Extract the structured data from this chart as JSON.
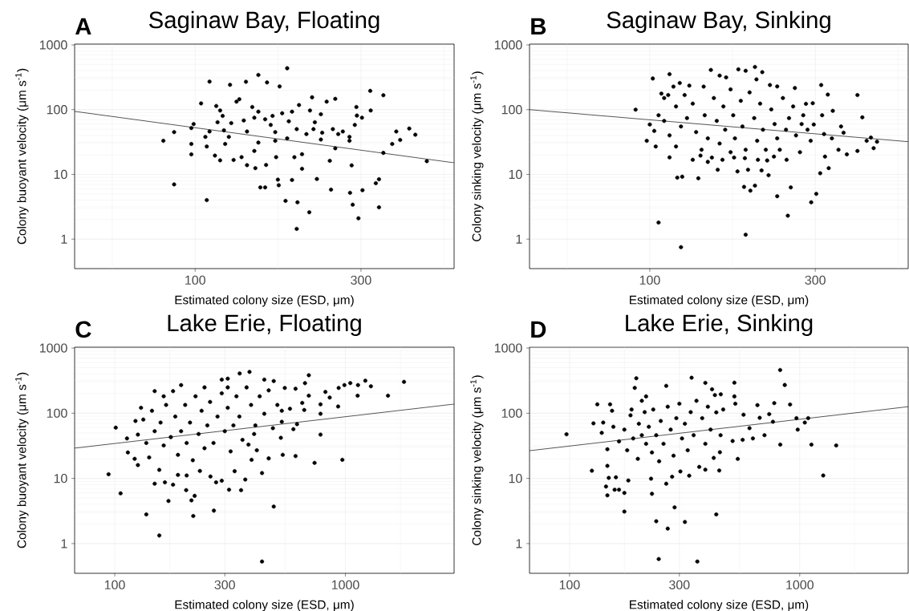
{
  "chart_data": [
    {
      "type": "scatter",
      "title": "Saginaw Bay, Floating",
      "annotations": [
        "A"
      ],
      "xlabel": "Estimated colony size (ESD, μm)",
      "ylabel": "Colony buoyant velocity (μm s$^{-1}$)",
      "log": "xy",
      "grid": true,
      "xlim": [
        45,
        556
      ],
      "ylim": [
        0.35,
        1030
      ],
      "xticks": [
        {
          "value": 57.7,
          "label": null
        },
        100,
        {
          "value": 173.2,
          "label": null
        },
        300,
        {
          "value": 519.6,
          "label": null
        }
      ],
      "yticks": [
        1,
        {
          "value": 3.16,
          "label": null
        },
        10,
        {
          "value": 31.6,
          "label": null
        },
        100,
        {
          "value": 316,
          "label": null
        },
        1000
      ],
      "series": [
        {
          "marker": "circle",
          "color": "#000000",
          "x": [
            81,
            87,
            87,
            97.5,
            97.5,
            97.5,
            99,
            104,
            107,
            108,
            108,
            110,
            110,
            114,
            115,
            116,
            118,
            120,
            121,
            118,
            122,
            126,
            125,
            127,
            131.5,
            134,
            129,
            138,
            140,
            141,
            141,
            136,
            146,
            148,
            149,
            148,
            152,
            152,
            152,
            154,
            159,
            159,
            160,
            161,
            167,
            165,
            175,
            170,
            170,
            171,
            173,
            174,
            178,
            184,
            186,
            184,
            182,
            190,
            190,
            193,
            196,
            197,
            196,
            199,
            203,
            203,
            209,
            217,
            214,
            219,
            221,
            224,
            230,
            230,
            232,
            239,
            244,
            246,
            253,
            249,
            253,
            213,
            258,
            266,
            278,
            278,
            279,
            282,
            284,
            288,
            291,
            292,
            295,
            302,
            303,
            319,
            320,
            331,
            338,
            338,
            348,
            348,
            369,
            379,
            389,
            413,
            430,
            464
          ],
          "values": [
            33,
            45,
            7.0,
            52,
            29.5,
            20.4,
            60,
            125,
            38,
            27,
            4.0,
            271,
            46,
            19.5,
            114,
            64,
            97,
            80,
            48,
            16.5,
            29.5,
            242,
            38,
            62,
            133,
            145,
            16.7,
            68,
            270,
            46,
            13.9,
            18.5,
            110,
            75,
            12.5,
            23,
            344,
            93,
            31,
            6.3,
            6.3,
            71,
            14,
            263,
            80,
            58,
            228,
            45,
            33,
            18.5,
            8.3,
            6.8,
            88,
            436,
            66,
            36,
            3.9,
            93,
            8.2,
            18.4,
            50,
            3.7,
            1.44,
            118,
            12.2,
            20.5,
            42,
            155,
            97,
            50,
            64,
            8.5,
            85,
            34.5,
            44,
            133,
            16.2,
            5.8,
            147,
            50,
            25.3,
            2.6,
            42,
            46,
            38,
            33,
            5.2,
            13.8,
            3.4,
            58,
            110,
            81,
            2.1,
            75,
            5.7,
            195,
            97,
            7.3,
            8.4,
            3.1,
            21.5,
            167,
            29.5,
            46,
            34,
            51,
            41,
            16
          ]
        },
        {
          "type": "line",
          "color": "#000000",
          "x": [
            45,
            556
          ],
          "values": [
            94,
            15.1
          ]
        }
      ]
    },
    {
      "type": "scatter",
      "title": "Saginaw Bay, Sinking",
      "annotations": [
        "B"
      ],
      "xlabel": "Estimated colony size (ESD, μm)",
      "ylabel": "Colony sinking velocity (μm s$^{-1}$)",
      "log": "xy",
      "grid": true,
      "xlim": [
        45,
        556
      ],
      "ylim": [
        0.35,
        1030
      ],
      "xticks": [
        {
          "value": 57.7,
          "label": null
        },
        100,
        {
          "value": 173.2,
          "label": null
        },
        300,
        {
          "value": 519.6,
          "label": null
        }
      ],
      "yticks": [
        1,
        {
          "value": 3.16,
          "label": null
        },
        10,
        {
          "value": 31.6,
          "label": null
        },
        100,
        {
          "value": 316,
          "label": null
        },
        1000
      ],
      "series": [
        {
          "marker": "circle",
          "color": "#000000",
          "x": [
            91,
            98,
            100,
            102,
            106,
            123,
            114,
            120,
            124,
            138,
            114,
            104,
            103,
            106,
            108,
            113,
            122,
            130,
            150,
            159,
            166,
            180,
            189,
            201,
            211,
            203,
            222,
            233,
            262,
            312,
            326,
            397,
            410,
            337,
            295,
            314,
            297,
            318,
            335,
            356,
            362,
            350,
            370,
            397,
            422,
            434,
            442,
            452,
            320,
            328,
            310,
            302,
            292,
            250,
            255,
            233,
            248,
            271,
            189,
            187,
            195,
            201,
            179,
            192,
            210,
            220,
            157,
            147,
            133,
            140,
            151,
            162,
            175,
            188,
            205,
            218,
            228,
            110,
            117,
            119,
            126,
            128,
            133,
            136,
            143,
            144,
            147,
            153,
            156,
            159,
            163,
            165,
            171,
            174,
            176,
            183,
            185,
            189,
            194,
            200,
            204,
            208,
            212,
            216,
            224,
            229,
            233,
            242,
            247,
            252,
            259,
            264,
            274,
            277,
            285,
            291,
            282,
            114,
            119,
            123,
            110,
            141,
            171,
            237
          ],
          "values": [
            100,
            33,
            59,
            303,
            1.8,
            0.75,
            354,
            8.9,
            9.2,
            8.7,
            18.3,
            27,
            47,
            82,
            177,
            168,
            258,
            235,
            411,
            336,
            315,
            420,
            399,
            456,
            380,
            294,
            240,
            228,
            216,
            240,
            171,
            168,
            76,
            96,
            126,
            82,
            59,
            42,
            36,
            55,
            44,
            24,
            20.4,
            23,
            33,
            37,
            25.4,
            32,
            18.8,
            12.5,
            10.4,
            5.0,
            3.7,
            2.3,
            6.3,
            4.6,
            16.8,
            22,
            1.17,
            6.4,
            5.6,
            6.7,
            11.1,
            11.8,
            11.5,
            9.7,
            11.8,
            15.6,
            16.8,
            19.5,
            18.2,
            16.8,
            18.2,
            17.8,
            16.8,
            16.4,
            18.8,
            151,
            227,
            112,
            168,
            74,
            124,
            45,
            227,
            82,
            36,
            151,
            67,
            30,
            112,
            49,
            206,
            82,
            36,
            137,
            55,
            24,
            185,
            74,
            33,
            124,
            49,
            24,
            101,
            60,
            36,
            151,
            49,
            74,
            112,
            40,
            60,
            82,
            49,
            33,
            123,
            40,
            27,
            55,
            67,
            24,
            22,
            24
          ]
        },
        {
          "type": "line",
          "color": "#000000",
          "x": [
            45,
            556
          ],
          "values": [
            100,
            32
          ]
        }
      ]
    },
    {
      "type": "scatter",
      "title": "Lake Erie, Floating",
      "annotations": [
        "C"
      ],
      "xlabel": "Estimated colony size (ESD, μm)",
      "ylabel": "Colony buoyant velocity (μm s$^{-1}$)",
      "log": "xy",
      "grid": true,
      "xlim": [
        67,
        2960
      ],
      "ylim": [
        0.35,
        1030
      ],
      "xticks": [
        100,
        {
          "value": 173.2,
          "label": null
        },
        300,
        {
          "value": 547.7,
          "label": null
        },
        1000,
        {
          "value": 1732,
          "label": null
        }
      ],
      "yticks": [
        1,
        {
          "value": 3.16,
          "label": null
        },
        10,
        {
          "value": 31.6,
          "label": null
        },
        100,
        {
          "value": 316,
          "label": null
        },
        1000
      ],
      "series": [
        {
          "marker": "circle",
          "color": "#000000",
          "x": [
            94,
            101,
            106,
            113,
            114,
            122,
            126,
            123,
            126,
            130,
            137,
            156,
            149,
            156,
            171,
            165,
            179,
            149,
            163,
            179,
            194,
            204,
            215,
            222,
            219,
            269,
            188,
            205,
            234,
            260,
            291,
            275,
            313,
            353,
            368,
            331,
            348,
            384,
            445,
            489,
            546,
            608,
            694,
            668,
            819,
            855,
            935,
            990,
            1050,
            1134,
            1220,
            1290,
            1530,
            1795,
            1130,
            930,
            780,
            780,
            780,
            694,
            663,
            650,
            575,
            530,
            530,
            617,
            595,
            525,
            535,
            608,
            735,
            970,
            489,
            435,
            435,
            465,
            413,
            392,
            380,
            402,
            133,
            137,
            145,
            149,
            141,
            158,
            163,
            167,
            175,
            183,
            188,
            194,
            202,
            205,
            212,
            218,
            224,
            231,
            238,
            245,
            252,
            259,
            268,
            279,
            291,
            300,
            309,
            318,
            327,
            337,
            347,
            358,
            373,
            390,
            407,
            425,
            445,
            465,
            485,
            507,
            309,
            245,
            291,
            309
          ],
          "values": [
            11.6,
            60,
            5.9,
            41,
            25,
            20,
            16,
            76,
            47,
            121,
            2.8,
            1.33,
            8.3,
            13.5,
            4.5,
            8.7,
            8.0,
            218,
            182,
            218,
            270,
            6.6,
            4.6,
            5.4,
            2.65,
            3.2,
            11.3,
            11.1,
            13.0,
            10.7,
            9.2,
            8.7,
            6.7,
            6.6,
            9.6,
            12.9,
            407,
            430,
            328,
            312,
            244,
            237,
            383,
            289,
            212,
            174,
            244,
            270,
            290,
            270,
            315,
            259,
            186,
            303,
            186,
            127,
            137,
            98,
            47,
            186,
            112,
            144,
            117,
            109,
            74,
            68,
            57,
            42,
            23,
            22,
            17.3,
            19.3,
            3.7,
            0.53,
            12.1,
            20.3,
            27,
            19.3,
            33,
            48,
            80,
            35,
            109,
            53,
            21,
            72,
            32,
            134,
            43,
            89,
            23,
            53,
            134,
            35,
            72,
            19,
            182,
            48,
            109,
            29,
            65,
            149,
            35,
            89,
            202,
            53,
            121,
            26,
            65,
            182,
            89,
            39,
            249,
            134,
            65,
            182,
            98,
            224,
            59,
            134,
            249,
            249,
            328,
            339
          ]
        },
        {
          "type": "line",
          "color": "#000000",
          "x": [
            67,
            2960
          ],
          "values": [
            29.1,
            138
          ]
        }
      ]
    },
    {
      "type": "scatter",
      "title": "Lake Erie, Sinking",
      "annotations": [
        "D"
      ],
      "xlabel": "Estimated colony size (ESD, μm)",
      "ylabel": "Colony sinking velocity (μm s$^{-1}$)",
      "log": "xy",
      "grid": true,
      "xlim": [
        67,
        2960
      ],
      "ylim": [
        0.35,
        1030
      ],
      "xticks": [
        100,
        {
          "value": 173.2,
          "label": null
        },
        300,
        {
          "value": 547.7,
          "label": null
        },
        1000,
        {
          "value": 1732,
          "label": null
        }
      ],
      "yticks": [
        1,
        {
          "value": 3.16,
          "label": null
        },
        10,
        {
          "value": 31.6,
          "label": null
        },
        100,
        {
          "value": 316,
          "label": null
        },
        1000
      ],
      "series": [
        {
          "marker": "circle",
          "color": "#000000",
          "x": [
            97,
            125,
            127,
            132,
            140,
            144,
            146,
            148,
            146,
            146,
            150,
            153,
            157,
            164,
            173,
            173,
            180,
            159,
            192,
            195,
            186,
            215,
            206,
            238,
            244,
            228,
            267,
            286,
            317,
            359,
            434,
            226,
            263,
            279,
            303,
            331,
            366,
            389,
            447,
            423,
            538,
            263,
            339,
            389,
            416,
            454,
            520,
            520,
            822,
            861,
            908,
            775,
            655,
            737,
            670,
            765,
            968,
            1088,
            1052,
            980,
            823,
            1124,
            1440,
            1265,
            703,
            626,
            570,
            605,
            565,
            511,
            525,
            465,
            453,
            450,
            434,
            138,
            155,
            164,
            173,
            178,
            184,
            189,
            198,
            200,
            206,
            212,
            215,
            221,
            228,
            231,
            238,
            245,
            249,
            256,
            267,
            275,
            283,
            291,
            300,
            308,
            317,
            326,
            336,
            346,
            356,
            377,
            389,
            399,
            410,
            428
          ],
          "values": [
            47.5,
            13.1,
            70,
            137,
            72,
            7.5,
            5.5,
            10.2,
            15.6,
            28,
            137,
            109,
            6.7,
            6.7,
            6.0,
            3.1,
            9.3,
            10.4,
            245,
            344,
            114,
            181,
            155,
            2.2,
            0.58,
            5.8,
            1.7,
            3.6,
            2.15,
            0.53,
            2.8,
            9.9,
            8.3,
            10.6,
            12.8,
            11.0,
            15.0,
            13.6,
            13.2,
            20.6,
            19.9,
            263,
            350,
            292,
            233,
            195,
            294,
            181,
            460,
            271,
            136,
            143,
            133,
            97,
            85,
            74,
            84,
            84,
            72,
            56,
            33,
            33,
            32,
            11.1,
            46,
            41,
            95,
            59,
            39,
            37.5,
            140,
            114,
            46,
            25.2,
            103,
            50,
            62,
            37,
            56,
            27,
            93,
            41,
            20,
            69,
            46,
            104,
            34,
            62,
            25,
            114,
            46,
            18.3,
            76,
            34,
            126,
            56,
            22.3,
            84,
            140,
            41,
            69,
            27,
            104,
            46,
            155,
            84,
            34,
            126,
            56,
            190
          ]
        },
        {
          "type": "line",
          "color": "#000000",
          "x": [
            67,
            2960
          ],
          "values": [
            26.6,
            126
          ]
        }
      ]
    }
  ]
}
